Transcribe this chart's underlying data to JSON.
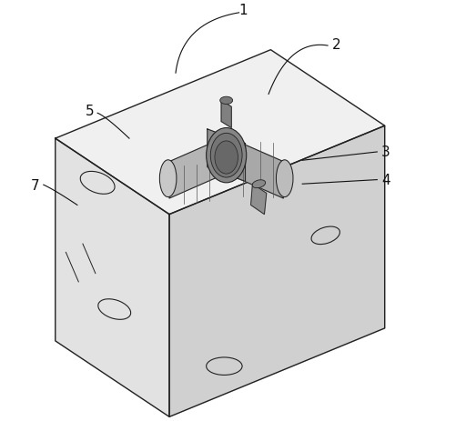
{
  "bg_color": "#ffffff",
  "line_color": "#222222",
  "fig_width": 5.02,
  "fig_height": 4.64,
  "dpi": 100,
  "top_face": {
    "color": "#f0f0f0"
  },
  "left_face": {
    "color": "#e2e2e2"
  },
  "right_face": {
    "color": "#d0d0d0"
  },
  "assembly_colors": {
    "body_l": "#b5b5b5",
    "body_r": "#a8a8a8",
    "end_l": "#c8c8c8",
    "end_r": "#bcbcbc",
    "clamp": "#909090",
    "ring_outer": "#858585",
    "ring_mid": "#757575",
    "ring_inner": "#686868",
    "stud": "#808080",
    "bolt_head": "#787878",
    "fast": "#909090",
    "fast_head": "#888888",
    "detail": "#555555"
  },
  "label_color": "#111111",
  "leader_color": "#111111",
  "label_fontsize": 11
}
